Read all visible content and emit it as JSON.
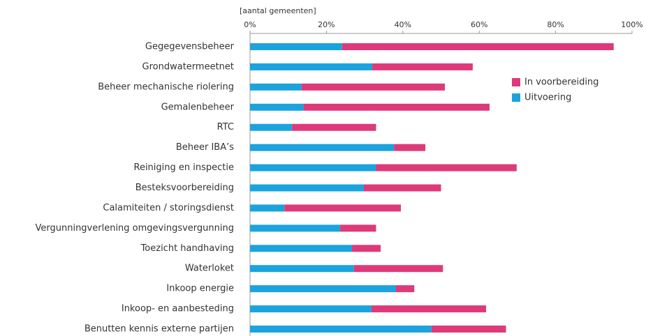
{
  "chart_data": {
    "type": "stacked-barh",
    "axis_label": "[aantal gemeenten]",
    "categories": [
      "Gegegevensbeheer",
      "Grondwatermeetnet",
      "Beheer mechanische riolering",
      "Gemalenbeheer",
      "RTC",
      "Beheer IBA’s",
      "Reiniging en inspectie",
      "Besteksvoorbereiding",
      "Calamiteiten / storingsdienst",
      "Vergunningverlening omgevingsvergunning",
      "Toezicht handhaving",
      "Waterloket",
      "Inkoop energie",
      "Inkoop- en aanbesteding",
      "Benutten kennis externe partijen"
    ],
    "series": [
      {
        "name": "Uitvoering",
        "color": "#1ba3dd",
        "values": [
          24.1,
          32,
          13.5,
          14,
          11,
          37.7,
          33,
          29.8,
          9,
          23.6,
          26.7,
          27.2,
          38.2,
          31.8,
          47.5
        ]
      },
      {
        "name": "In voorbereiding",
        "color": "#de3a7a",
        "values": [
          71.1,
          26.3,
          37.5,
          48.7,
          22,
          8.2,
          36.8,
          20.2,
          30.5,
          9.4,
          7.5,
          23.3,
          4.8,
          30,
          19.5
        ]
      }
    ],
    "xlim": [
      0,
      100
    ],
    "xticks": [
      {
        "value": 0,
        "label": "0%"
      },
      {
        "value": 20,
        "label": "20%"
      },
      {
        "value": 40,
        "label": "40%"
      },
      {
        "value": 60,
        "label": "60%"
      },
      {
        "value": 80,
        "label": "80%"
      },
      {
        "value": 100,
        "label": "100%"
      }
    ],
    "legend": "upper right"
  }
}
